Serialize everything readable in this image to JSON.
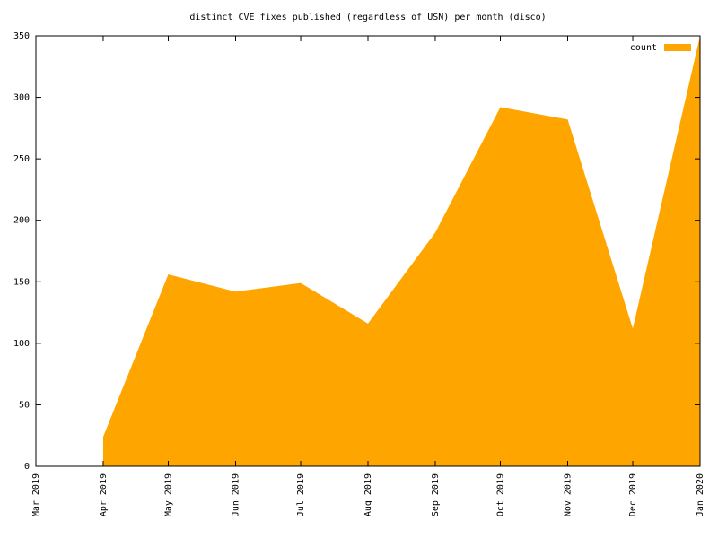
{
  "chart_data": {
    "type": "area",
    "title": "distinct CVE fixes published (regardless of USN) per month (disco)",
    "x": [
      "Mar 2019",
      "Apr 2019",
      "May 2019",
      "Jun 2019",
      "Jul 2019",
      "Aug 2019",
      "Sep 2019",
      "Oct 2019",
      "Nov 2019",
      "Dec 2019",
      "Jan 2020"
    ],
    "series": [
      {
        "name": "count",
        "color": "#ffa500",
        "values": [
          null,
          24,
          156,
          142,
          149,
          116,
          190,
          292,
          282,
          112,
          350
        ]
      }
    ],
    "ylim": [
      0,
      350
    ],
    "yticks": [
      0,
      50,
      100,
      150,
      200,
      250,
      300,
      350
    ],
    "legend": "top-right"
  }
}
